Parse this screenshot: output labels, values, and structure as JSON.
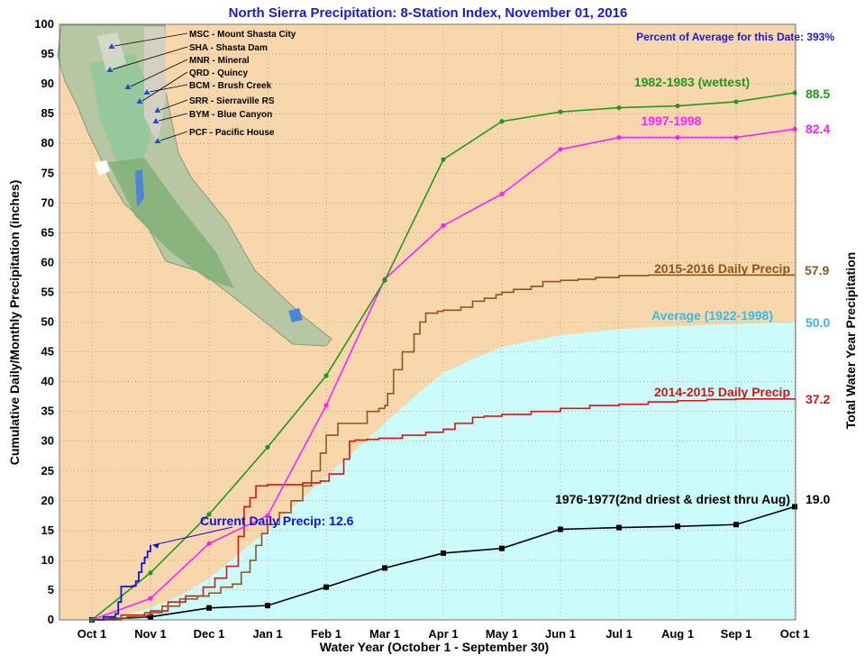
{
  "chart_data": {
    "type": "line",
    "title": "North Sierra Precipitation: 8-Station Index, November 01, 2016",
    "subtitle": "Percent of Average for this Date: 393%",
    "xlabel": "Water Year (October 1 - September 30)",
    "ylabel": "Cumulative Daily/Monthly Precipitation (inches)",
    "y2label": "Total Water Year Precipitation",
    "ylim": [
      0,
      100
    ],
    "yticks": [
      0,
      5,
      10,
      15,
      20,
      25,
      30,
      35,
      40,
      45,
      50,
      55,
      60,
      65,
      70,
      75,
      80,
      85,
      90,
      95,
      100
    ],
    "xticks": [
      "Oct 1",
      "Nov 1",
      "Dec 1",
      "Jan 1",
      "Feb 1",
      "Mar 1",
      "Apr 1",
      "May 1",
      "Jun 1",
      "Jul 1",
      "Aug 1",
      "Sep 1",
      "Oct 1"
    ],
    "grid": true,
    "colors": {
      "background": "#f9d7ac",
      "grid": "#b07860",
      "average_fill": "#ccfbfb",
      "wettest": "#1e9b1e",
      "y1997": "#ff21ff",
      "y2015_16": "#8a5522",
      "y2014_15": "#dd1111",
      "driest": "#000000",
      "current": "#1111dd",
      "average_label": "#33bbee"
    },
    "stations": [
      {
        "code": "MSC",
        "name": "Mount Shasta City",
        "text": "MSC - Mount Shasta City"
      },
      {
        "code": "SHA",
        "name": "Shasta Dam",
        "text": "SHA - Shasta Dam"
      },
      {
        "code": "MNR",
        "name": "Mineral",
        "text": "MNR - Mineral"
      },
      {
        "code": "QRD",
        "name": "Quincy",
        "text": "QRD - Quincy"
      },
      {
        "code": "BCM",
        "name": "Brush Creek",
        "text": "BCM - Brush Creek"
      },
      {
        "code": "SRR",
        "name": "Sierraville RS",
        "text": "SRR - Sierraville RS"
      },
      {
        "code": "BYM",
        "name": "Blue Canyon",
        "text": "BYM - Blue Canyon"
      },
      {
        "code": "PCF",
        "name": "Pacific House",
        "text": "PCF - Pacific House"
      }
    ],
    "series": [
      {
        "key": "wettest",
        "name": "1982-1983 (wettest)",
        "total": "88.5",
        "style": "line-dot",
        "x": [
          0,
          1,
          2,
          3,
          4,
          5,
          6,
          7,
          8,
          9,
          10,
          11,
          12
        ],
        "y": [
          0,
          7.9,
          17.7,
          29.0,
          41.0,
          57.0,
          77.3,
          83.7,
          85.3,
          86.0,
          86.3,
          87.0,
          88.5
        ]
      },
      {
        "key": "y1997",
        "name": "1997-1998",
        "total": "82.4",
        "style": "line-dot",
        "x": [
          0,
          1,
          2,
          3,
          4,
          5,
          6,
          7,
          8,
          9,
          10,
          11,
          12
        ],
        "y": [
          0,
          3.6,
          12.8,
          17.5,
          36.0,
          57.2,
          66.2,
          71.5,
          79.0,
          81.0,
          81.0,
          81.0,
          82.4
        ]
      },
      {
        "key": "y2015_16",
        "name": "2015-2016 Daily Precip",
        "total": "57.9",
        "style": "step",
        "x": [
          0,
          0.3,
          0.6,
          0.9,
          1.2,
          1.5,
          1.8,
          2.0,
          2.2,
          2.4,
          2.55,
          2.7,
          2.8,
          2.9,
          3.0,
          3.2,
          3.4,
          3.6,
          3.75,
          3.9,
          4.0,
          4.2,
          4.3,
          4.5,
          4.7,
          4.9,
          5.0,
          5.05,
          5.15,
          5.3,
          5.5,
          5.6,
          5.7,
          5.9,
          6.0,
          6.1,
          6.3,
          6.5,
          6.7,
          6.9,
          7.0,
          7.2,
          7.5,
          7.7,
          8.0,
          8.3,
          8.6,
          9.0,
          9.5,
          10.0,
          11.0,
          12.0
        ],
        "y": [
          0,
          0.3,
          0.5,
          1.2,
          2.3,
          3.5,
          4.0,
          4.5,
          5.5,
          6.0,
          8.0,
          10.0,
          12.5,
          14.5,
          16.0,
          18.0,
          20.0,
          22.5,
          25.0,
          28.0,
          31.0,
          33.0,
          33.0,
          33.0,
          35.0,
          35.5,
          36.0,
          38.0,
          42.0,
          45.0,
          48.0,
          50.0,
          51.5,
          51.8,
          52.0,
          52.0,
          52.5,
          53.5,
          54.0,
          54.6,
          55.0,
          55.5,
          56.0,
          56.8,
          57.0,
          57.2,
          57.5,
          57.8,
          57.9,
          57.9,
          57.9,
          57.9
        ]
      },
      {
        "key": "y2014_15",
        "name": "2014-2015 Daily Precip",
        "total": "37.2",
        "style": "step",
        "x": [
          0,
          0.5,
          1.0,
          1.3,
          1.6,
          1.9,
          2.1,
          2.3,
          2.5,
          2.6,
          2.7,
          2.8,
          3.0,
          3.3,
          3.6,
          3.9,
          4.05,
          4.3,
          4.4,
          4.5,
          4.7,
          4.9,
          5.3,
          5.7,
          6.0,
          6.2,
          6.5,
          6.7,
          7.0,
          7.5,
          8.0,
          8.5,
          9.0,
          9.5,
          10.0,
          10.5,
          11.0,
          12.0
        ],
        "y": [
          0,
          0.8,
          1.5,
          3.0,
          4.0,
          5.5,
          7.0,
          9.0,
          14.0,
          19.0,
          20.5,
          22.5,
          22.7,
          22.7,
          23.0,
          23.3,
          24.5,
          27.0,
          30.0,
          30.2,
          30.3,
          30.5,
          31.0,
          31.5,
          32.0,
          33.0,
          34.0,
          34.2,
          34.5,
          35.0,
          35.5,
          36.0,
          36.2,
          36.6,
          36.8,
          37.0,
          37.1,
          37.2
        ]
      },
      {
        "key": "driest",
        "name": "1976-1977(2nd driest & driest thru Aug)",
        "total": "19.0",
        "style": "line-square",
        "x": [
          0,
          1,
          2,
          3,
          4,
          5,
          6,
          7,
          8,
          9,
          10,
          11,
          12
        ],
        "y": [
          0,
          0.5,
          2.0,
          2.4,
          5.5,
          8.7,
          11.2,
          12.0,
          15.2,
          15.5,
          15.7,
          16.0,
          19.0
        ]
      },
      {
        "key": "current",
        "name": "Current Daily Precip: 12.6",
        "total": "",
        "style": "step",
        "x": [
          0,
          0.2,
          0.4,
          0.45,
          0.5,
          0.7,
          0.75,
          0.8,
          0.85,
          0.9,
          0.95,
          1.0
        ],
        "y": [
          0,
          0.5,
          1.0,
          3.0,
          5.6,
          5.7,
          6.5,
          8.0,
          9.5,
          10.5,
          11.5,
          12.6
        ]
      },
      {
        "key": "average",
        "name": "Average (1922-1998)",
        "total": "50.0",
        "style": "area",
        "x": [
          0,
          0.5,
          1.0,
          1.5,
          2.0,
          2.5,
          3.0,
          3.5,
          4.0,
          4.5,
          5.0,
          5.5,
          6.0,
          6.5,
          7.0,
          7.5,
          8.0,
          9.0,
          10.0,
          11.0,
          12.0
        ],
        "y": [
          0,
          0.6,
          2.0,
          4.0,
          7.0,
          11.0,
          15.0,
          19.5,
          24.0,
          28.5,
          33.0,
          37.5,
          41.5,
          43.8,
          45.8,
          46.8,
          47.8,
          48.8,
          49.3,
          49.7,
          50.0
        ]
      }
    ]
  }
}
